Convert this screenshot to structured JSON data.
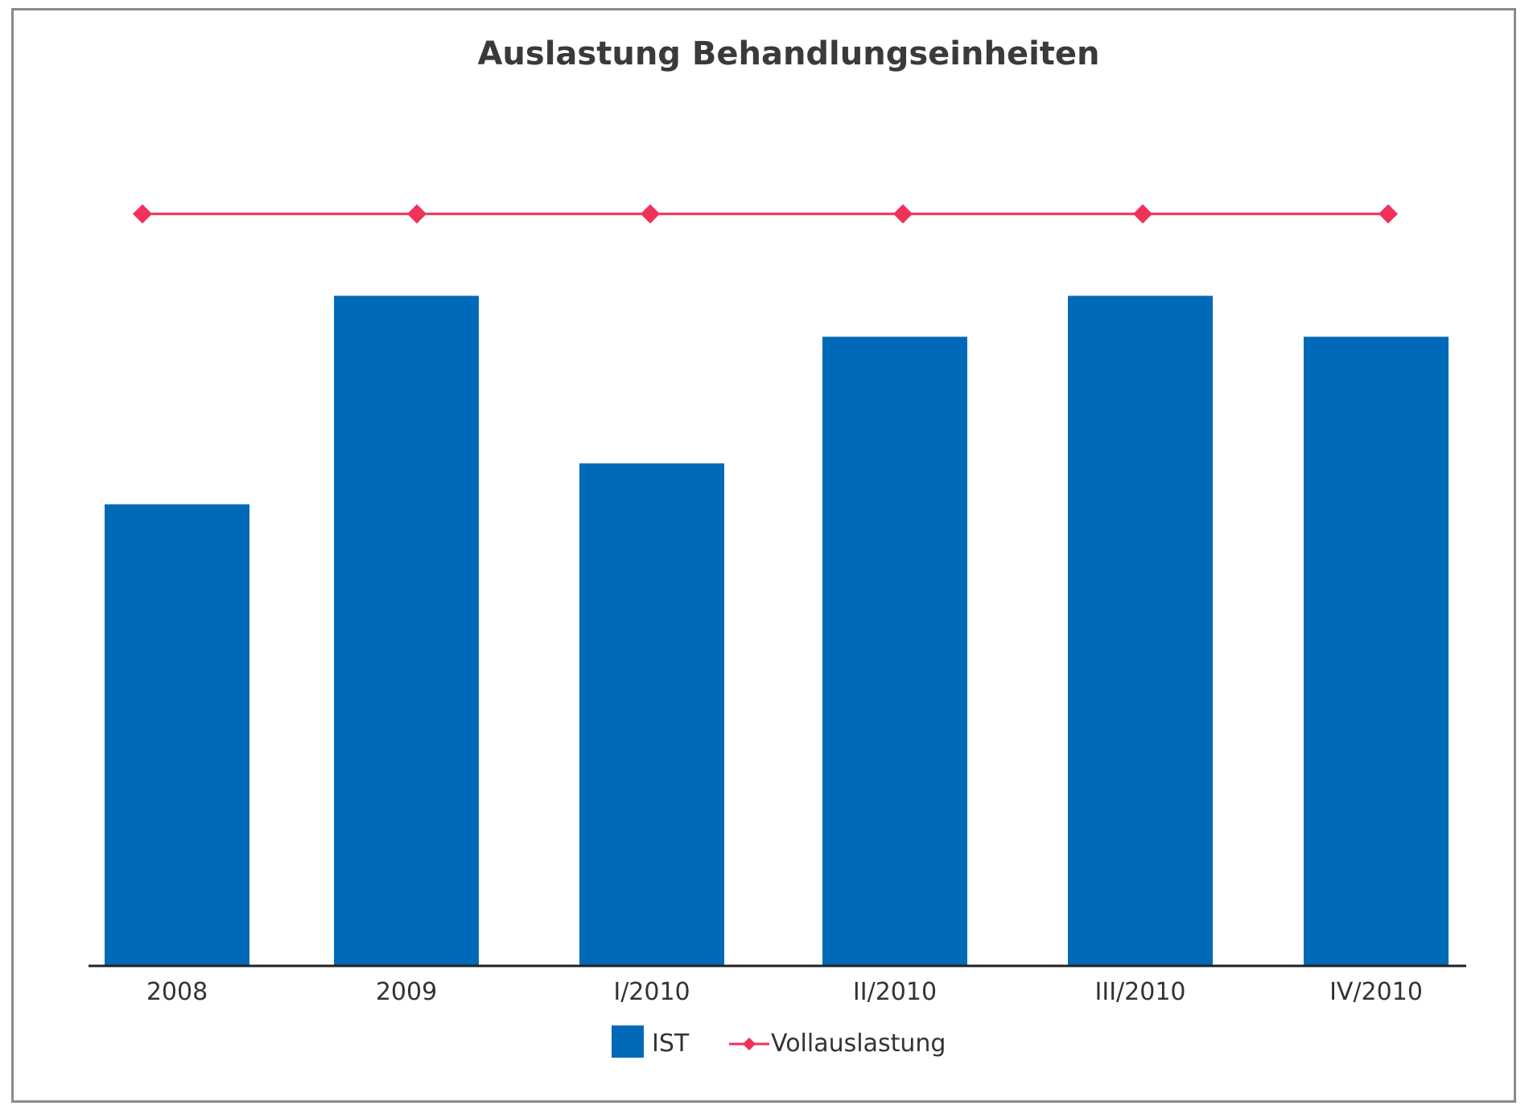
{
  "chart_data": {
    "type": "bar",
    "title": "Auslastung Behandlungseinheiten",
    "xlabel": "",
    "ylabel": "",
    "categories": [
      "2008",
      "2009",
      "I/2010",
      "II/2010",
      "III/2010",
      "IV/2010"
    ],
    "ylim": [
      0,
      100
    ],
    "grid": false,
    "legend_position": "bottom",
    "series": [
      {
        "name": "IST",
        "type": "bar",
        "color": "#006ab8",
        "values": [
          62,
          90,
          67.5,
          84.5,
          90,
          84.5
        ]
      },
      {
        "name": "Vollauslastung",
        "type": "line",
        "marker": "diamond",
        "color": "#f0325a",
        "values": [
          101,
          101,
          101,
          101,
          101,
          101
        ]
      }
    ]
  }
}
